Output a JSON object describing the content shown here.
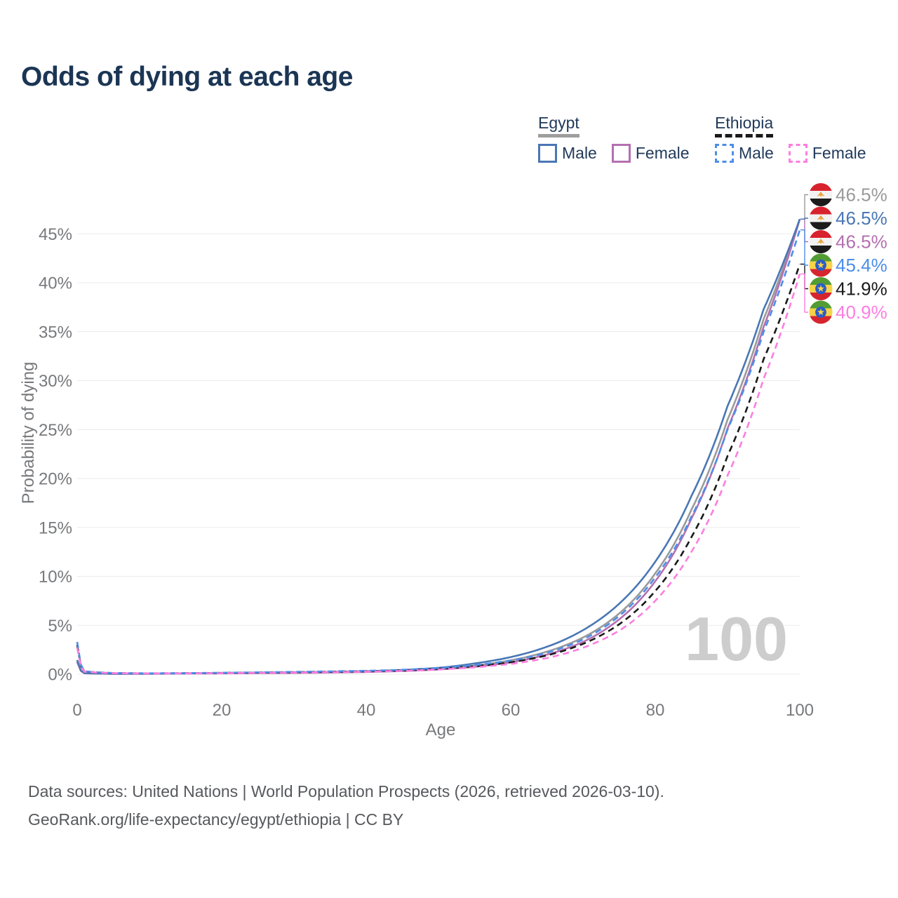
{
  "title": "Odds of dying at each age",
  "legend": {
    "groups": [
      {
        "label": "Egypt",
        "underline_color": "#9e9e9e",
        "underline_style": "solid",
        "items": [
          {
            "label": "Male",
            "color": "#4a77b4",
            "dashed": false
          },
          {
            "label": "Female",
            "color": "#b470b0",
            "dashed": false
          }
        ]
      },
      {
        "label": "Ethiopia",
        "underline_color": "#1a1a1a",
        "underline_style": "dashed",
        "items": [
          {
            "label": "Male",
            "color": "#4d8ee8",
            "dashed": true
          },
          {
            "label": "Female",
            "color": "#fc7ee0",
            "dashed": true
          }
        ]
      }
    ]
  },
  "chart_data": {
    "type": "line",
    "title": "Odds of dying at each age",
    "xlabel": "Age",
    "ylabel": "Probability of dying",
    "xlim": [
      0,
      100
    ],
    "ylim": [
      0,
      48
    ],
    "grid": "horizontal",
    "x_ticks": [
      0,
      20,
      40,
      60,
      80,
      100
    ],
    "y_ticks": [
      0,
      5,
      10,
      15,
      20,
      25,
      30,
      35,
      40,
      45
    ],
    "y_tick_suffix": "%",
    "watermark": "100",
    "legend_position": "top-right",
    "ages": [
      0,
      1,
      5,
      10,
      15,
      20,
      25,
      30,
      35,
      40,
      45,
      50,
      55,
      60,
      65,
      70,
      75,
      80,
      85,
      90,
      95,
      100
    ],
    "series": [
      {
        "id": "egypt-both",
        "name": "Egypt Both sexes",
        "country": "Egypt",
        "sex": "Both",
        "color": "#9a9a9a",
        "dashed": false,
        "flag": "egypt",
        "label_row": 0,
        "end_label": "46.5%",
        "end_value": 46.5,
        "values": [
          1.35,
          0.1,
          0.045,
          0.05,
          0.075,
          0.105,
          0.13,
          0.16,
          0.2,
          0.26,
          0.37,
          0.55,
          0.88,
          1.42,
          2.3,
          3.75,
          6.2,
          10.3,
          16.8,
          26.0,
          36.3,
          46.5
        ]
      },
      {
        "id": "egypt-female",
        "name": "Egypt Female",
        "country": "Egypt",
        "sex": "Female",
        "color": "#b470b0",
        "dashed": false,
        "flag": "egypt",
        "label_row": 2,
        "end_label": "46.5%",
        "end_value": 46.5,
        "values": [
          1.25,
          0.09,
          0.04,
          0.045,
          0.065,
          0.085,
          0.105,
          0.13,
          0.17,
          0.23,
          0.32,
          0.48,
          0.76,
          1.22,
          2.0,
          3.3,
          5.6,
          9.5,
          15.9,
          25.1,
          35.5,
          46.5
        ]
      },
      {
        "id": "egypt-male",
        "name": "Egypt Male",
        "country": "Egypt",
        "sex": "Male",
        "color": "#4a77b4",
        "dashed": false,
        "flag": "egypt",
        "label_row": 1,
        "end_label": "46.5%",
        "end_value": 46.5,
        "values": [
          1.45,
          0.11,
          0.05,
          0.06,
          0.09,
          0.13,
          0.16,
          0.19,
          0.23,
          0.3,
          0.43,
          0.65,
          1.1,
          1.75,
          2.8,
          4.5,
          7.2,
          11.5,
          18.2,
          27.4,
          37.3,
          46.5
        ]
      },
      {
        "id": "ethiopia-both",
        "name": "Ethiopia Both sexes",
        "country": "Ethiopia",
        "sex": "Both",
        "color": "#1a1a1a",
        "dashed": true,
        "flag": "ethiopia",
        "label_row": 4,
        "end_label": "41.9%",
        "end_value": 41.9,
        "values": [
          3.0,
          0.28,
          0.11,
          0.085,
          0.1,
          0.13,
          0.165,
          0.2,
          0.25,
          0.3,
          0.39,
          0.55,
          0.81,
          1.22,
          1.92,
          3.1,
          5.1,
          8.5,
          14.0,
          22.3,
          32.2,
          41.9
        ]
      },
      {
        "id": "ethiopia-male",
        "name": "Ethiopia Male",
        "country": "Ethiopia",
        "sex": "Male",
        "color": "#4d8ee8",
        "dashed": true,
        "flag": "ethiopia",
        "label_row": 3,
        "end_label": "45.4%",
        "end_value": 45.4,
        "values": [
          3.3,
          0.3,
          0.12,
          0.09,
          0.11,
          0.15,
          0.19,
          0.24,
          0.29,
          0.35,
          0.45,
          0.63,
          0.93,
          1.4,
          2.2,
          3.55,
          5.95,
          9.9,
          16.1,
          25.0,
          35.0,
          45.4
        ]
      },
      {
        "id": "ethiopia-female",
        "name": "Ethiopia Female",
        "country": "Ethiopia",
        "sex": "Female",
        "color": "#fc7ee0",
        "dashed": true,
        "flag": "ethiopia",
        "label_row": 5,
        "end_label": "40.9%",
        "end_value": 40.9,
        "values": [
          2.7,
          0.26,
          0.1,
          0.08,
          0.09,
          0.11,
          0.14,
          0.17,
          0.21,
          0.26,
          0.34,
          0.48,
          0.7,
          1.05,
          1.65,
          2.7,
          4.45,
          7.5,
          12.5,
          20.3,
          30.2,
          40.9
        ]
      }
    ]
  },
  "footer": {
    "line1": "Data sources: United Nations | World Population Prospects (2026, retrieved 2026-03-10).",
    "line2": "GeoRank.org/life-expectancy/egypt/ethiopia | CC BY"
  }
}
